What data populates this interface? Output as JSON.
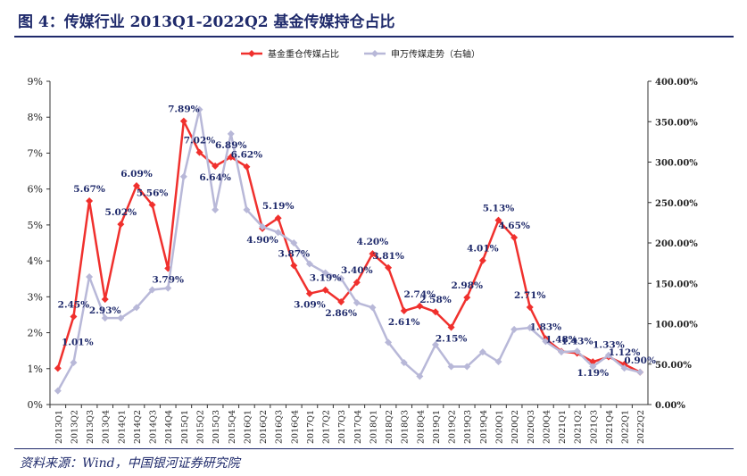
{
  "title": "图 4：传媒行业 2013Q1-2022Q2 基金传媒持仓占比",
  "source": "资料来源：Wind，中国银河证券研究院",
  "chart_data": {
    "type": "line",
    "categories": [
      "2013Q1",
      "2013Q2",
      "2013Q3",
      "2013Q4",
      "2014Q1",
      "2014Q2",
      "2014Q3",
      "2014Q4",
      "2015Q1",
      "2015Q2",
      "2015Q3",
      "2015Q4",
      "2016Q1",
      "2016Q2",
      "2016Q3",
      "2016Q4",
      "2017Q1",
      "2017Q2",
      "2017Q3",
      "2017Q4",
      "2018Q1",
      "2018Q2",
      "2018Q3",
      "2018Q4",
      "2019Q1",
      "2019Q2",
      "2019Q3",
      "2019Q4",
      "2020Q1",
      "2020Q2",
      "2020Q3",
      "2020Q4",
      "2021Q1",
      "2021Q2",
      "2021Q3",
      "2021Q4",
      "2022Q1",
      "2022Q2"
    ],
    "y_left": {
      "ticks": [
        "0%",
        "1%",
        "2%",
        "3%",
        "4%",
        "5%",
        "6%",
        "7%",
        "8%",
        "9%"
      ],
      "ylim": [
        0,
        9
      ]
    },
    "y_right": {
      "ticks": [
        "0.00%",
        "50.00%",
        "100.00%",
        "150.00%",
        "200.00%",
        "250.00%",
        "300.00%",
        "350.00%",
        "400.00%"
      ],
      "ylim": [
        0,
        400
      ]
    },
    "series": [
      {
        "name": "基金重仓传媒占比",
        "axis": "left",
        "color": "#f0302d",
        "values": [
          1.01,
          2.45,
          5.67,
          2.93,
          5.02,
          6.09,
          5.56,
          3.79,
          7.89,
          7.02,
          6.64,
          6.89,
          6.62,
          4.9,
          5.19,
          3.87,
          3.09,
          3.19,
          2.86,
          3.4,
          4.2,
          3.81,
          2.61,
          2.74,
          2.58,
          2.15,
          2.98,
          4.01,
          5.13,
          4.65,
          2.71,
          1.83,
          1.48,
          1.43,
          1.19,
          1.33,
          1.12,
          0.9
        ],
        "labels": [
          "1.01%",
          "2.45%",
          "5.67%",
          "2.93%",
          "5.02%",
          "6.09%",
          "5.56%",
          "3.79%",
          "7.89%",
          "7.02%",
          "6.64%",
          "6.89%",
          "6.62%",
          "4.90%",
          "5.19%",
          "3.87%",
          "3.09%",
          "3.19%",
          "2.86%",
          "3.40%",
          "4.20%",
          "3.81%",
          "2.61%",
          "2.74%",
          "2.58%",
          "2.15%",
          "2.98%",
          "4.01%",
          "5.13%",
          "4.65%",
          "2.71%",
          "1.83%",
          "1.48%",
          "1.43%",
          "1.19%",
          "1.33%",
          "1.12%",
          "0.90%"
        ]
      },
      {
        "name": "申万传媒走势（右轴）",
        "axis": "right",
        "color": "#b8b8d8",
        "values": [
          17,
          52,
          158,
          107,
          107,
          120,
          142,
          144,
          282,
          365,
          241,
          335,
          241,
          220,
          213,
          200,
          174,
          163,
          156,
          126,
          120,
          77,
          52,
          35,
          74,
          47,
          47,
          65,
          53,
          93,
          95,
          78,
          65,
          66,
          47,
          61,
          45,
          40
        ]
      }
    ],
    "legend_position": "top-center",
    "grid": false
  }
}
